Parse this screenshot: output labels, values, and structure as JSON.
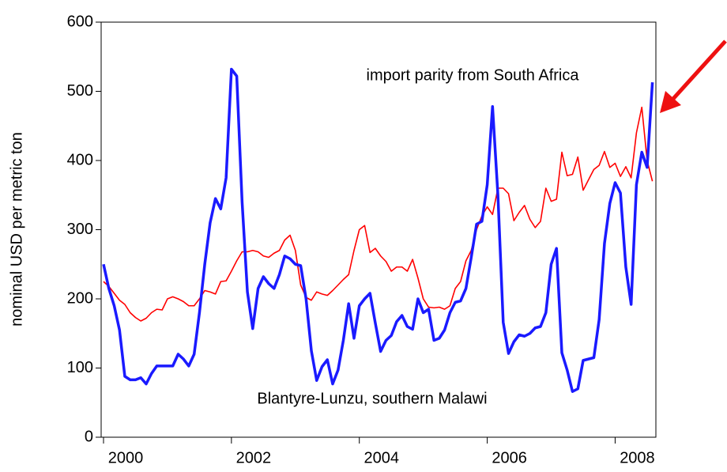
{
  "chart_data": {
    "type": "line",
    "y_label": "nominal USD per metric ton",
    "annotations": [
      "import parity from South Africa",
      "Blantyre-Lunzu, southern Malawi"
    ],
    "x": [
      2000,
      2000.083,
      2000.167,
      2000.25,
      2000.333,
      2000.417,
      2000.5,
      2000.583,
      2000.667,
      2000.75,
      2000.833,
      2000.917,
      2001,
      2001.083,
      2001.167,
      2001.25,
      2001.333,
      2001.417,
      2001.5,
      2001.583,
      2001.667,
      2001.75,
      2001.833,
      2001.917,
      2002,
      2002.083,
      2002.167,
      2002.25,
      2002.333,
      2002.417,
      2002.5,
      2002.583,
      2002.667,
      2002.75,
      2002.833,
      2002.917,
      2003,
      2003.083,
      2003.167,
      2003.25,
      2003.333,
      2003.417,
      2003.5,
      2003.583,
      2003.667,
      2003.75,
      2003.833,
      2003.917,
      2004,
      2004.083,
      2004.167,
      2004.25,
      2004.333,
      2004.417,
      2004.5,
      2004.583,
      2004.667,
      2004.75,
      2004.833,
      2004.917,
      2005,
      2005.083,
      2005.167,
      2005.25,
      2005.333,
      2005.417,
      2005.5,
      2005.583,
      2005.667,
      2005.75,
      2005.833,
      2005.917,
      2006,
      2006.083,
      2006.167,
      2006.25,
      2006.333,
      2006.417,
      2006.5,
      2006.583,
      2006.667,
      2006.75,
      2006.833,
      2006.917,
      2007,
      2007.083,
      2007.167,
      2007.25,
      2007.333,
      2007.417,
      2007.5,
      2007.583,
      2007.667,
      2007.75,
      2007.833,
      2007.917,
      2008,
      2008.083,
      2008.167,
      2008.25,
      2008.333,
      2008.417,
      2008.5,
      2008.583
    ],
    "series": [
      {
        "name": "Blantyre-Lunzu, southern Malawi",
        "color": "#1a1aff",
        "width": 3.5,
        "values": [
          250,
          215,
          190,
          155,
          88,
          83,
          83,
          86,
          77,
          92,
          103,
          103,
          103,
          103,
          120,
          113,
          103,
          120,
          180,
          250,
          310,
          345,
          330,
          375,
          532,
          522,
          340,
          210,
          157,
          215,
          232,
          222,
          215,
          235,
          262,
          258,
          250,
          248,
          200,
          125,
          82,
          102,
          112,
          77,
          97,
          140,
          193,
          143,
          190,
          200,
          208,
          165,
          124,
          140,
          147,
          167,
          176,
          160,
          156,
          200,
          180,
          185,
          140,
          143,
          155,
          180,
          195,
          197,
          215,
          260,
          308,
          312,
          365,
          478,
          350,
          166,
          121,
          138,
          148,
          146,
          150,
          158,
          160,
          180,
          250,
          273,
          122,
          97,
          66,
          70,
          111,
          113,
          115,
          170,
          280,
          338,
          368,
          353,
          246,
          192,
          365,
          412,
          390,
          513
        ]
      },
      {
        "name": "import parity from South Africa",
        "color": "#ff0000",
        "width": 1.6,
        "values": [
          225,
          218,
          208,
          198,
          192,
          180,
          173,
          168,
          172,
          180,
          185,
          184,
          200,
          203,
          200,
          196,
          190,
          190,
          200,
          212,
          210,
          207,
          225,
          226,
          240,
          255,
          268,
          268,
          270,
          268,
          262,
          260,
          266,
          270,
          285,
          292,
          270,
          220,
          202,
          198,
          210,
          207,
          205,
          212,
          220,
          228,
          235,
          270,
          300,
          306,
          267,
          273,
          262,
          254,
          240,
          246,
          246,
          240,
          257,
          230,
          200,
          188,
          187,
          188,
          185,
          190,
          215,
          225,
          255,
          270,
          300,
          320,
          333,
          322,
          360,
          360,
          352,
          313,
          325,
          335,
          315,
          303,
          312,
          360,
          341,
          344,
          412,
          378,
          380,
          405,
          357,
          372,
          387,
          393,
          413,
          390,
          396,
          377,
          391,
          375,
          440,
          477,
          400,
          370
        ]
      }
    ],
    "xlim": [
      2000,
      2008.6
    ],
    "xticks": [
      2000,
      2002,
      2004,
      2006,
      2008
    ],
    "ylim": [
      0,
      600
    ],
    "yticks": [
      0,
      100,
      200,
      300,
      400,
      500,
      600
    ],
    "grid": false
  }
}
